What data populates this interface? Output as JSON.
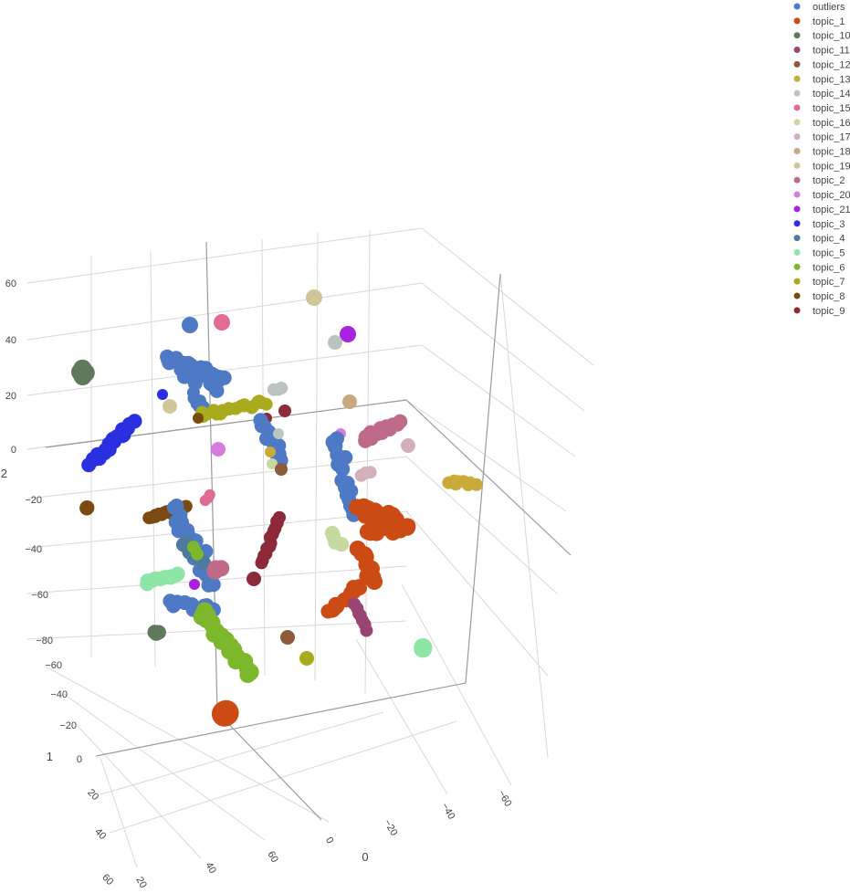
{
  "chart_data": {
    "type": "scatter3d",
    "axes": {
      "z": {
        "title": "2",
        "ticks": [
          "60",
          "40",
          "20",
          "0",
          "−20",
          "−40",
          "−60",
          "−80"
        ]
      },
      "x": {
        "title": "1",
        "ticks": [
          "−60",
          "−40",
          "−20",
          "0",
          "20",
          "40",
          "60"
        ]
      },
      "y": {
        "title": "0",
        "ticks": [
          "0",
          "−20",
          "−40",
          "−60"
        ],
        "lower_ticks": [
          "60",
          "40",
          "20"
        ]
      }
    },
    "grid": true,
    "legend_position": "top-right",
    "series": [
      {
        "name": "outliers",
        "color": "#4e79c5"
      },
      {
        "name": "topic_1",
        "color": "#cc4a14"
      },
      {
        "name": "topic_10",
        "color": "#5f7a5a"
      },
      {
        "name": "topic_11",
        "color": "#9a4472"
      },
      {
        "name": "topic_12",
        "color": "#8d5a3b"
      },
      {
        "name": "topic_13",
        "color": "#c9ab3a"
      },
      {
        "name": "topic_14",
        "color": "#bcc4c0"
      },
      {
        "name": "topic_15",
        "color": "#e06c95"
      },
      {
        "name": "topic_16",
        "color": "#c6d9a0"
      },
      {
        "name": "topic_17",
        "color": "#d4b0bb"
      },
      {
        "name": "topic_18",
        "color": "#c8a880"
      },
      {
        "name": "topic_19",
        "color": "#cfc79a"
      },
      {
        "name": "topic_2",
        "color": "#c06a8a"
      },
      {
        "name": "topic_20",
        "color": "#d57cdd"
      },
      {
        "name": "topic_21",
        "color": "#a922e0"
      },
      {
        "name": "topic_3",
        "color": "#2a2fe0"
      },
      {
        "name": "topic_4",
        "color": "#4f7aa0"
      },
      {
        "name": "topic_5",
        "color": "#8ee6a6"
      },
      {
        "name": "topic_6",
        "color": "#7db82c"
      },
      {
        "name": "topic_7",
        "color": "#a9ab1e"
      },
      {
        "name": "topic_8",
        "color": "#7a4a10"
      },
      {
        "name": "topic_9",
        "color": "#8c2a3a"
      }
    ]
  }
}
